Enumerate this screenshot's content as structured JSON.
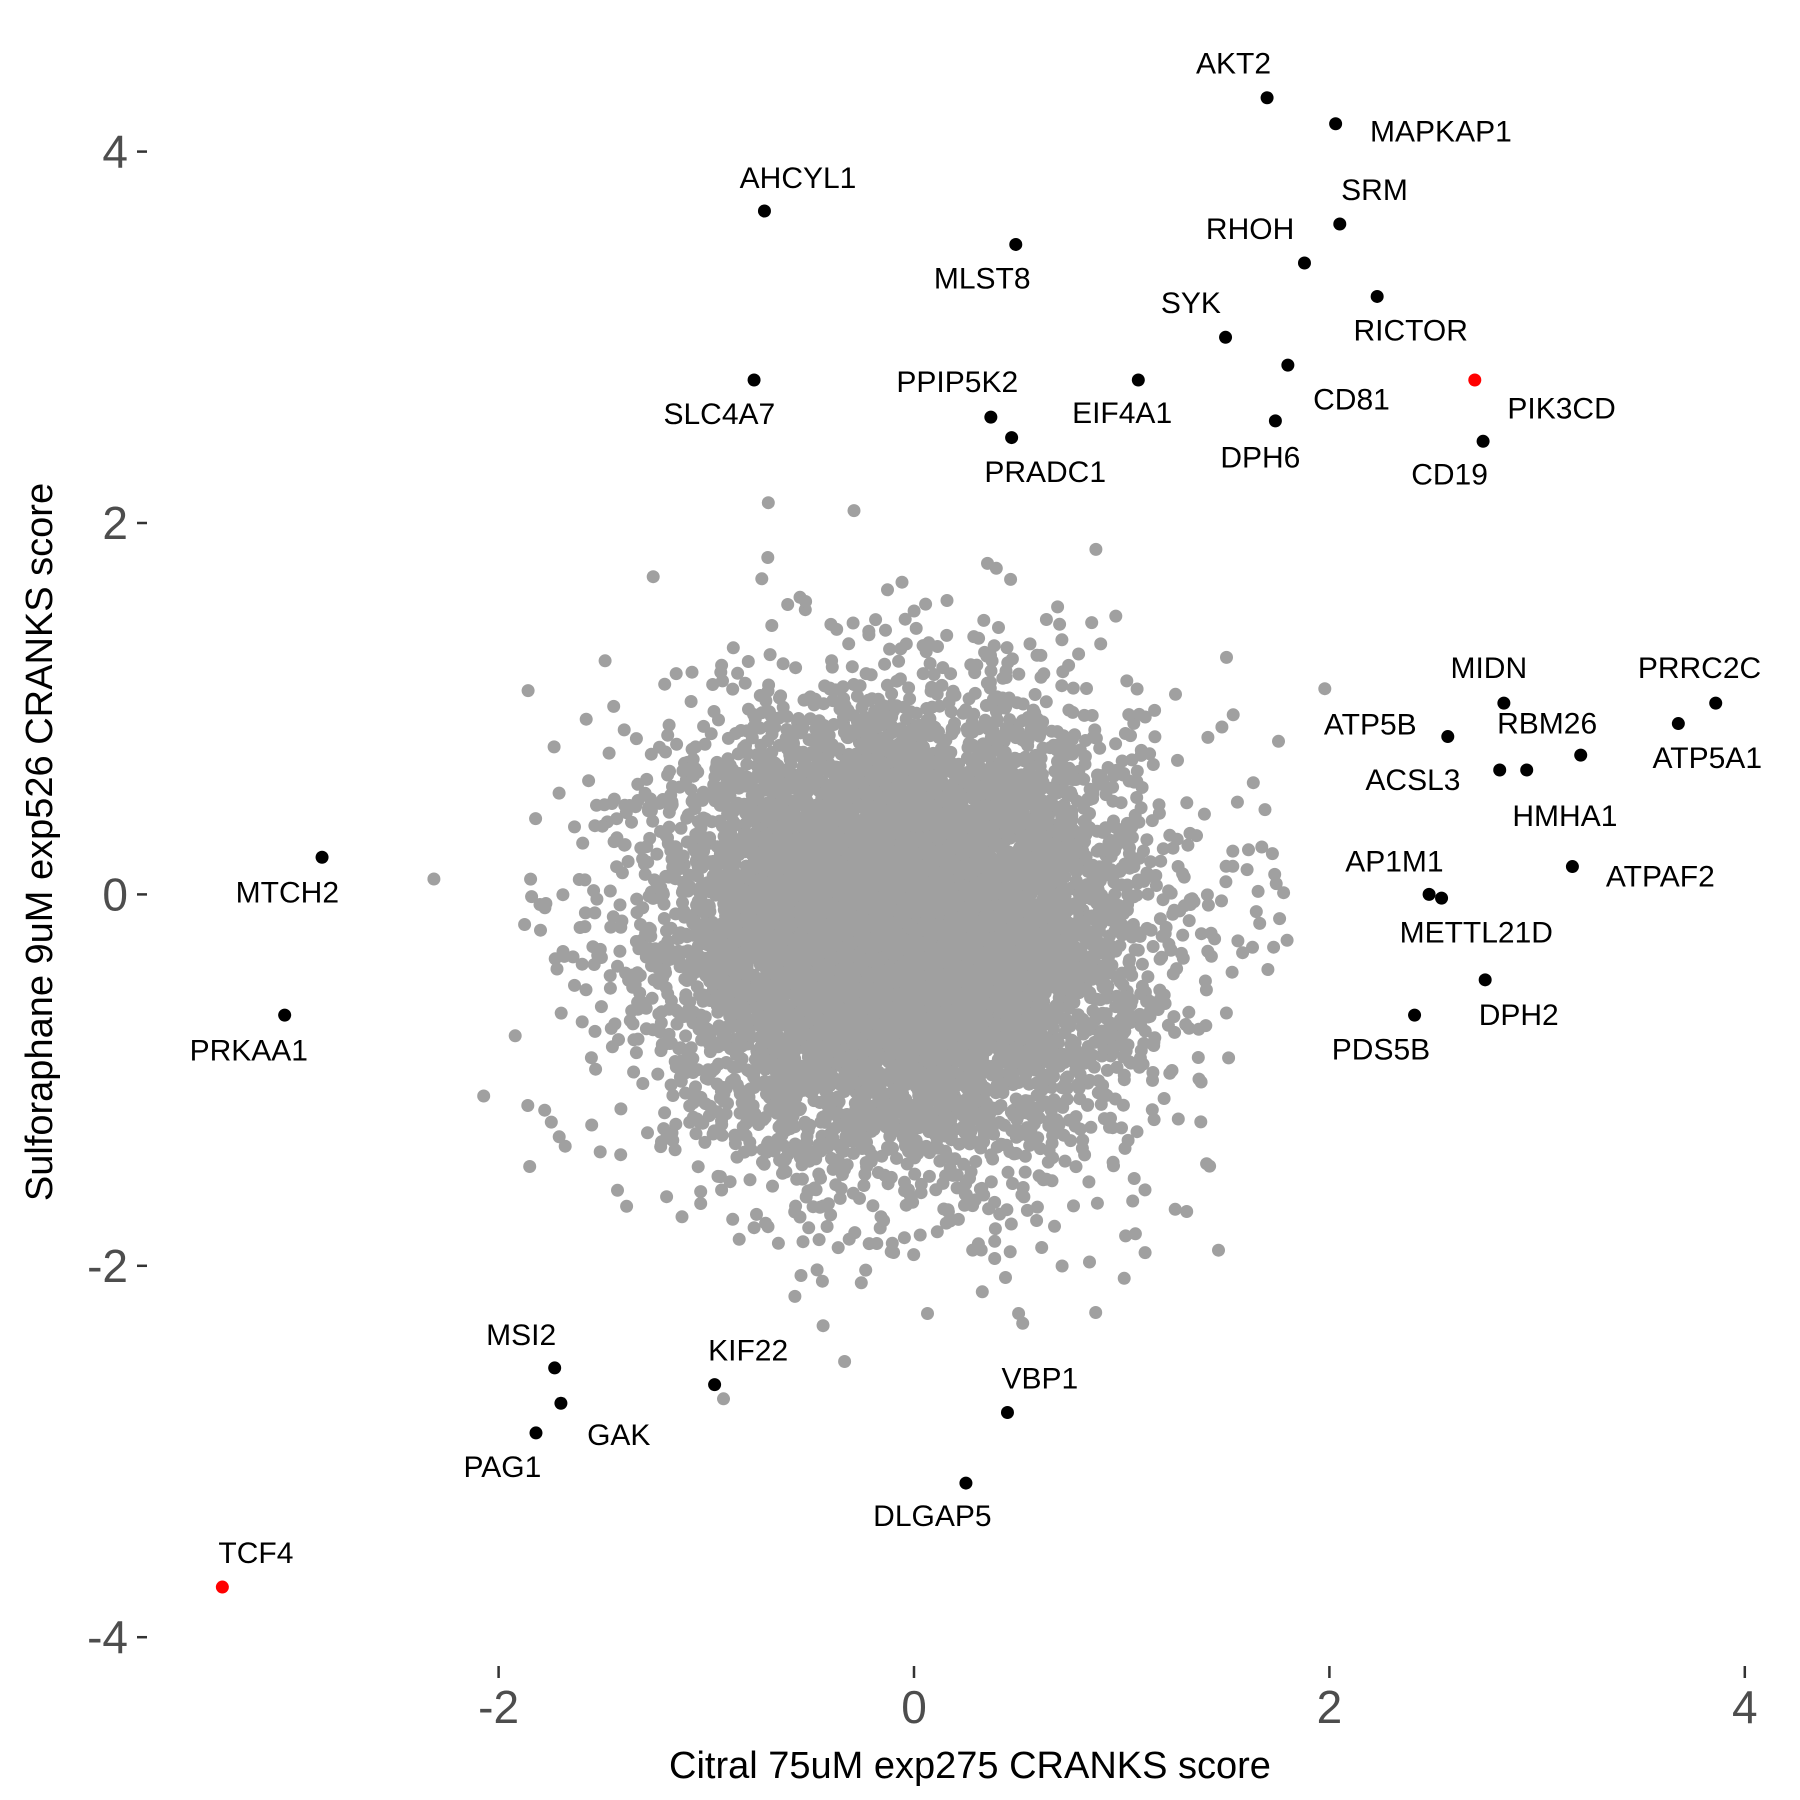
{
  "chart_data": {
    "type": "scatter",
    "xlabel": "Citral 75uM exp275 CRANKS score",
    "ylabel": "Sulforaphane 9uM exp526 CRANKS score",
    "xlim": [
      -3.5,
      4.1
    ],
    "ylim": [
      -4.3,
      4.6
    ],
    "x_ticks": [
      "-2",
      "0",
      "2",
      "4"
    ],
    "x_tick_values": [
      -2,
      0,
      2,
      4
    ],
    "y_ticks": [
      "4",
      "2",
      "0",
      "-2",
      "-4"
    ],
    "y_tick_values": [
      4,
      2,
      0,
      -2,
      -4
    ],
    "grid": false,
    "colors": {
      "background_points": "#A0A0A0",
      "labeled": "#000000",
      "highlight": "#FF0000"
    },
    "labeled_points": [
      {
        "label": "AKT2",
        "x": 1.7,
        "y": 4.29,
        "color": "#000000"
      },
      {
        "label": "MAPKAP1",
        "x": 2.03,
        "y": 4.15,
        "color": "#000000"
      },
      {
        "label": "SRM",
        "x": 2.05,
        "y": 3.61,
        "color": "#000000"
      },
      {
        "label": "AHCYL1",
        "x": -0.72,
        "y": 3.68,
        "color": "#000000"
      },
      {
        "label": "MLST8",
        "x": 0.49,
        "y": 3.5,
        "color": "#000000"
      },
      {
        "label": "RHOH",
        "x": 1.88,
        "y": 3.4,
        "color": "#000000"
      },
      {
        "label": "RICTOR",
        "x": 2.23,
        "y": 3.22,
        "color": "#000000"
      },
      {
        "label": "SYK",
        "x": 1.5,
        "y": 3.0,
        "color": "#000000"
      },
      {
        "label": "CD81",
        "x": 1.8,
        "y": 2.85,
        "color": "#000000"
      },
      {
        "label": "PIK3CD",
        "x": 2.7,
        "y": 2.77,
        "color": "#FF0000"
      },
      {
        "label": "SLC4A7",
        "x": -0.77,
        "y": 2.77,
        "color": "#000000"
      },
      {
        "label": "EIF4A1",
        "x": 1.08,
        "y": 2.77,
        "color": "#000000"
      },
      {
        "label": "PPIP5K2",
        "x": 0.37,
        "y": 2.57,
        "color": "#000000"
      },
      {
        "label": "DPH6",
        "x": 1.74,
        "y": 2.55,
        "color": "#000000"
      },
      {
        "label": "PRADC1",
        "x": 0.47,
        "y": 2.46,
        "color": "#000000"
      },
      {
        "label": "CD19",
        "x": 2.74,
        "y": 2.44,
        "color": "#000000"
      },
      {
        "label": "MIDN",
        "x": 2.84,
        "y": 1.03,
        "color": "#000000"
      },
      {
        "label": "PRRC2C",
        "x": 3.86,
        "y": 1.03,
        "color": "#000000"
      },
      {
        "label": "ATP5A1",
        "x": 3.68,
        "y": 0.92,
        "color": "#000000"
      },
      {
        "label": "ATP5B",
        "x": 2.57,
        "y": 0.85,
        "color": "#000000"
      },
      {
        "label": "RBM26",
        "x": 3.21,
        "y": 0.75,
        "color": "#000000"
      },
      {
        "label": "ACSL3",
        "x": 2.82,
        "y": 0.67,
        "color": "#000000"
      },
      {
        "label": "HMHA1",
        "x": 2.95,
        "y": 0.67,
        "color": "#000000"
      },
      {
        "label": "ATPAF2",
        "x": 3.17,
        "y": 0.15,
        "color": "#000000"
      },
      {
        "label": "AP1M1",
        "x": 2.48,
        "y": 0.0,
        "color": "#000000"
      },
      {
        "label": "METTL21D",
        "x": 2.54,
        "y": -0.02,
        "color": "#000000"
      },
      {
        "label": "DPH2",
        "x": 2.75,
        "y": -0.46,
        "color": "#000000"
      },
      {
        "label": "PDS5B",
        "x": 2.41,
        "y": -0.65,
        "color": "#000000"
      },
      {
        "label": "MTCH2",
        "x": -2.85,
        "y": 0.2,
        "color": "#000000"
      },
      {
        "label": "PRKAA1",
        "x": -3.03,
        "y": -0.65,
        "color": "#000000"
      },
      {
        "label": "MSI2",
        "x": -1.73,
        "y": -2.55,
        "color": "#000000"
      },
      {
        "label": "GAK",
        "x": -1.7,
        "y": -2.74,
        "color": "#000000"
      },
      {
        "label": "PAG1",
        "x": -1.82,
        "y": -2.9,
        "color": "#000000"
      },
      {
        "label": "KIF22",
        "x": -0.96,
        "y": -2.64,
        "color": "#000000"
      },
      {
        "label": "VBP1",
        "x": 0.45,
        "y": -2.79,
        "color": "#000000"
      },
      {
        "label": "DLGAP5",
        "x": 0.25,
        "y": -3.17,
        "color": "#000000"
      },
      {
        "label": "TCF4",
        "x": -3.33,
        "y": -3.73,
        "color": "#FF0000"
      }
    ]
  }
}
